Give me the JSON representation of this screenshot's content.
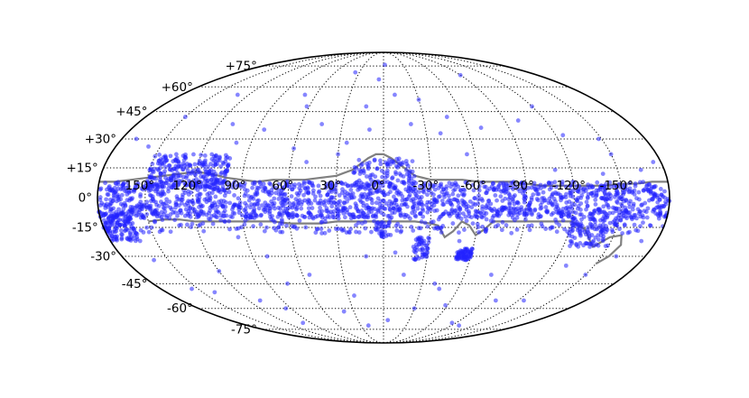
{
  "chart_data": {
    "type": "scatter",
    "projection": "mollweide",
    "title": "",
    "xlabel": "",
    "ylabel": "",
    "grid": true,
    "legend": "none",
    "colors": {
      "points": "#2222ff",
      "curve": "#808080",
      "grid": "#000000",
      "outline": "#000000"
    },
    "lat_tick_labels": [
      {
        "lat": 75,
        "label": "+75°"
      },
      {
        "lat": 60,
        "label": "+60°"
      },
      {
        "lat": 45,
        "label": "+45°"
      },
      {
        "lat": 30,
        "label": "+30°"
      },
      {
        "lat": 15,
        "label": "+15°"
      },
      {
        "lat": 0,
        "label": "0°"
      },
      {
        "lat": -15,
        "label": "-15°"
      },
      {
        "lat": -30,
        "label": "-30°"
      },
      {
        "lat": -45,
        "label": "-45°"
      },
      {
        "lat": -60,
        "label": "-60°"
      },
      {
        "lat": -75,
        "label": "-75°"
      }
    ],
    "lon_tick_labels": [
      {
        "lon": 150,
        "label": "150°"
      },
      {
        "lon": 120,
        "label": "120°"
      },
      {
        "lon": 90,
        "label": "90°"
      },
      {
        "lon": 60,
        "label": "60°"
      },
      {
        "lon": 30,
        "label": "30°"
      },
      {
        "lon": 0,
        "label": "0°"
      },
      {
        "lon": -30,
        "label": "-30°"
      },
      {
        "lon": -60,
        "label": "-60°"
      },
      {
        "lon": -90,
        "label": "-90°"
      },
      {
        "lon": -120,
        "label": "-120°"
      },
      {
        "lon": -150,
        "label": "-150°"
      }
    ],
    "series": [
      {
        "points": [
          [
            5,
            65
          ],
          [
            -2,
            76
          ],
          [
            -10,
            55
          ],
          [
            14,
            48
          ],
          [
            -30,
            52
          ],
          [
            -90,
            68
          ],
          [
            -70,
            36
          ],
          [
            -100,
            40
          ],
          [
            -120,
            48
          ],
          [
            -150,
            22
          ],
          [
            -140,
            12
          ],
          [
            -165,
            14
          ],
          [
            -175,
            -5
          ],
          [
            -170,
            -22
          ],
          [
            -160,
            -30
          ],
          [
            -130,
            -35
          ],
          [
            -100,
            -55
          ],
          [
            -80,
            -40
          ],
          [
            -60,
            -30
          ],
          [
            -45,
            -48
          ],
          [
            -30,
            -60
          ],
          [
            -15,
            -40
          ],
          [
            -8,
            -28
          ],
          [
            0,
            -20
          ],
          [
            12,
            -30
          ],
          [
            25,
            -52
          ],
          [
            40,
            -62
          ],
          [
            55,
            -40
          ],
          [
            75,
            -45
          ],
          [
            95,
            -60
          ],
          [
            120,
            -38
          ],
          [
            140,
            -50
          ],
          [
            160,
            -32
          ],
          [
            175,
            -20
          ],
          [
            170,
            30
          ],
          [
            150,
            42
          ],
          [
            130,
            55
          ],
          [
            110,
            38
          ],
          [
            100,
            28
          ],
          [
            85,
            35
          ],
          [
            70,
            55
          ],
          [
            60,
            25
          ],
          [
            45,
            38
          ],
          [
            35,
            70
          ],
          [
            25,
            28
          ],
          [
            10,
            35
          ],
          [
            -20,
            38
          ],
          [
            -40,
            33
          ],
          [
            -55,
            22
          ],
          [
            -110,
            14
          ],
          [
            -135,
            -12
          ],
          [
            -155,
            -18
          ],
          [
            -175,
            18
          ],
          [
            178,
            -8
          ],
          [
            165,
            6
          ],
          [
            -165,
            -10
          ],
          [
            -58,
            -58
          ],
          [
            -85,
            -70
          ],
          [
            20,
            -72
          ],
          [
            -5,
            -68
          ],
          [
            80,
            -30
          ],
          [
            95,
            -20
          ],
          [
            110,
            -55
          ],
          [
            140,
            12
          ],
          [
            155,
            -48
          ],
          [
            -125,
            -55
          ],
          [
            -150,
            -40
          ],
          [
            -20,
            -25
          ],
          [
            50,
            -15
          ],
          [
            -125,
            32
          ],
          [
            -148,
            30
          ],
          [
            158,
            26
          ],
          [
            62,
            48
          ],
          [
            -48,
            42
          ],
          [
            -15,
            17
          ],
          [
            15,
            12
          ],
          [
            30,
            22
          ],
          [
            50,
            18
          ],
          [
            -50,
            -22
          ],
          [
            -70,
            -12
          ],
          [
            -95,
            -14
          ],
          [
            -40,
            -45
          ],
          [
            100,
            -70
          ],
          [
            -100,
            -72
          ]
        ]
      }
    ],
    "curves": [
      {
        "points": [
          [
            180,
            8
          ],
          [
            170,
            8
          ],
          [
            160,
            9
          ],
          [
            150,
            10
          ],
          [
            140,
            11
          ],
          [
            130,
            12
          ],
          [
            120,
            13
          ],
          [
            110,
            12
          ],
          [
            100,
            10
          ],
          [
            90,
            9
          ],
          [
            80,
            8
          ],
          [
            70,
            9
          ],
          [
            60,
            9
          ],
          [
            50,
            9
          ],
          [
            40,
            10
          ],
          [
            30,
            11
          ],
          [
            20,
            14
          ],
          [
            10,
            20
          ],
          [
            5,
            22
          ],
          [
            0,
            22
          ],
          [
            -5,
            20
          ],
          [
            -10,
            17
          ],
          [
            -15,
            14
          ],
          [
            -20,
            11
          ],
          [
            -25,
            10
          ],
          [
            -30,
            9
          ],
          [
            -40,
            9
          ],
          [
            -50,
            9
          ],
          [
            -60,
            8
          ],
          [
            -70,
            8
          ],
          [
            -80,
            8
          ],
          [
            -90,
            7
          ],
          [
            -100,
            6
          ],
          [
            -110,
            6
          ],
          [
            -120,
            6
          ],
          [
            -130,
            6
          ],
          [
            -140,
            6
          ],
          [
            -150,
            7
          ],
          [
            -160,
            7
          ],
          [
            -170,
            8
          ],
          [
            -180,
            8
          ]
        ]
      },
      {
        "points": [
          [
            150,
            -12
          ],
          [
            140,
            -11
          ],
          [
            130,
            -11
          ],
          [
            120,
            -12
          ],
          [
            110,
            -12
          ],
          [
            100,
            -12
          ],
          [
            90,
            -12
          ],
          [
            80,
            -12
          ],
          [
            70,
            -12
          ],
          [
            60,
            -13
          ],
          [
            50,
            -13
          ],
          [
            40,
            -13
          ],
          [
            30,
            -12
          ],
          [
            20,
            -12
          ],
          [
            10,
            -12
          ],
          [
            0,
            -12
          ],
          [
            -10,
            -12
          ],
          [
            -20,
            -12
          ],
          [
            -30,
            -13
          ],
          [
            -35,
            -14
          ],
          [
            -40,
            -20
          ],
          [
            -45,
            -17
          ],
          [
            -50,
            -12
          ],
          [
            -55,
            -14
          ],
          [
            -60,
            -19
          ],
          [
            -65,
            -16
          ],
          [
            -70,
            -12
          ],
          [
            -80,
            -12
          ],
          [
            -90,
            -12
          ],
          [
            -100,
            -12
          ],
          [
            -110,
            -12
          ],
          [
            -120,
            -12
          ],
          [
            -130,
            -16
          ],
          [
            -135,
            -21
          ],
          [
            -140,
            -25
          ],
          [
            -148,
            -20
          ],
          [
            -155,
            -19
          ],
          [
            -158,
            -24
          ],
          [
            -155,
            -30
          ],
          [
            -150,
            -34
          ]
        ]
      }
    ],
    "clusters": [
      {
        "lon": [
          -180,
          180
        ],
        "lat": [
          -10,
          8
        ],
        "count": 1500
      },
      {
        "lon": [
          -180,
          180
        ],
        "lat": [
          -18,
          -5
        ],
        "count": 400
      },
      {
        "lon": [
          100,
          150
        ],
        "lat": [
          5,
          22
        ],
        "count": 260
      },
      {
        "lon": [
          -20,
          20
        ],
        "lat": [
          3,
          20
        ],
        "count": 110
      },
      {
        "lon": [
          160,
          180
        ],
        "lat": [
          -22,
          -8
        ],
        "count": 120
      },
      {
        "lon": [
          -150,
          -120
        ],
        "lat": [
          -25,
          -10
        ],
        "count": 90
      },
      {
        "lon": [
          -60,
          -50
        ],
        "lat": [
          -32,
          -26
        ],
        "count": 70
      },
      {
        "lon": [
          -30,
          -20
        ],
        "lat": [
          -32,
          -20
        ],
        "count": 50
      },
      {
        "lon": [
          -5,
          5
        ],
        "lat": [
          -20,
          -12
        ],
        "count": 30
      }
    ]
  }
}
